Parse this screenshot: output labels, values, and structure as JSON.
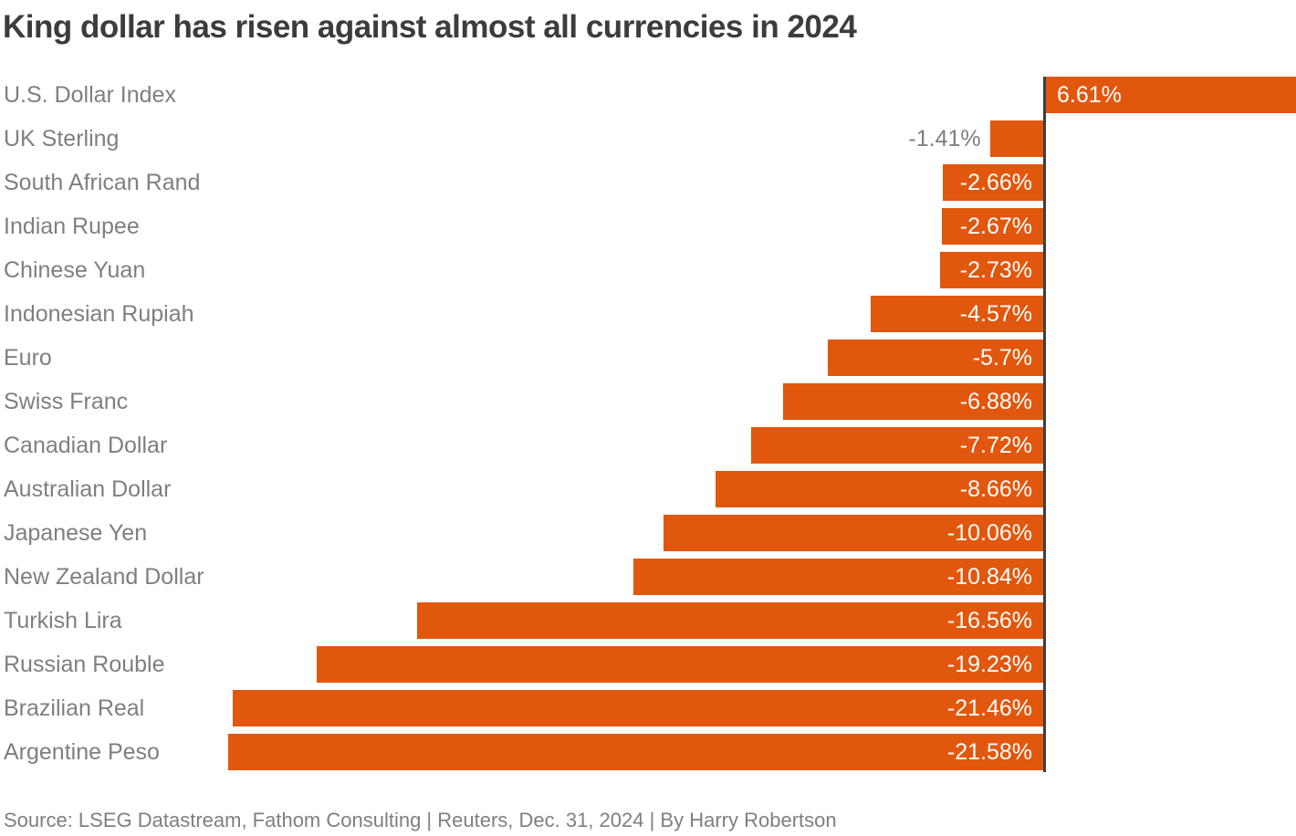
{
  "title": "King dollar has risen against almost all currencies in 2024",
  "footer": {
    "text": "Source: LSEG Datastream, Fathom Consulting | Reuters, Dec. 31, 2024 | By Harry Robertson"
  },
  "colors": {
    "bar": "#e2570e",
    "axis_line": "#3e3e3e",
    "title_text": "#3b3b40",
    "category_text": "#7f7f7f",
    "value_inside_text": "#ffffff",
    "value_outside_text": "#7f7f7f",
    "background": "#ffffff"
  },
  "chart_data": {
    "type": "bar",
    "orientation": "horizontal",
    "title": "King dollar has risen against almost all currencies in 2024",
    "xlabel": "",
    "ylabel": "",
    "xlim": [
      -21.58,
      6.61
    ],
    "baseline": 0,
    "grid": false,
    "legend": false,
    "value_unit": "%",
    "categories": [
      "U.S. Dollar Index",
      "UK Sterling",
      "South African Rand",
      "Indian Rupee",
      "Chinese Yuan",
      "Indonesian Rupiah",
      "Euro",
      "Swiss Franc",
      "Canadian Dollar",
      "Australian Dollar",
      "Japanese Yen",
      "New Zealand Dollar",
      "Turkish Lira",
      "Russian Rouble",
      "Brazilian Real",
      "Argentine Peso"
    ],
    "values": [
      6.61,
      -1.41,
      -2.66,
      -2.67,
      -2.73,
      -4.57,
      -5.7,
      -6.88,
      -7.72,
      -8.66,
      -10.06,
      -10.84,
      -16.56,
      -19.23,
      -21.46,
      -21.58
    ],
    "value_labels": [
      "6.61%",
      "-1.41%",
      "-2.66%",
      "-2.67%",
      "-2.73%",
      "-4.57%",
      "-5.7%",
      "-6.88%",
      "-7.72%",
      "-8.66%",
      "-10.06%",
      "-10.84%",
      "-16.56%",
      "-19.23%",
      "-21.46%",
      "-21.58%"
    ]
  }
}
